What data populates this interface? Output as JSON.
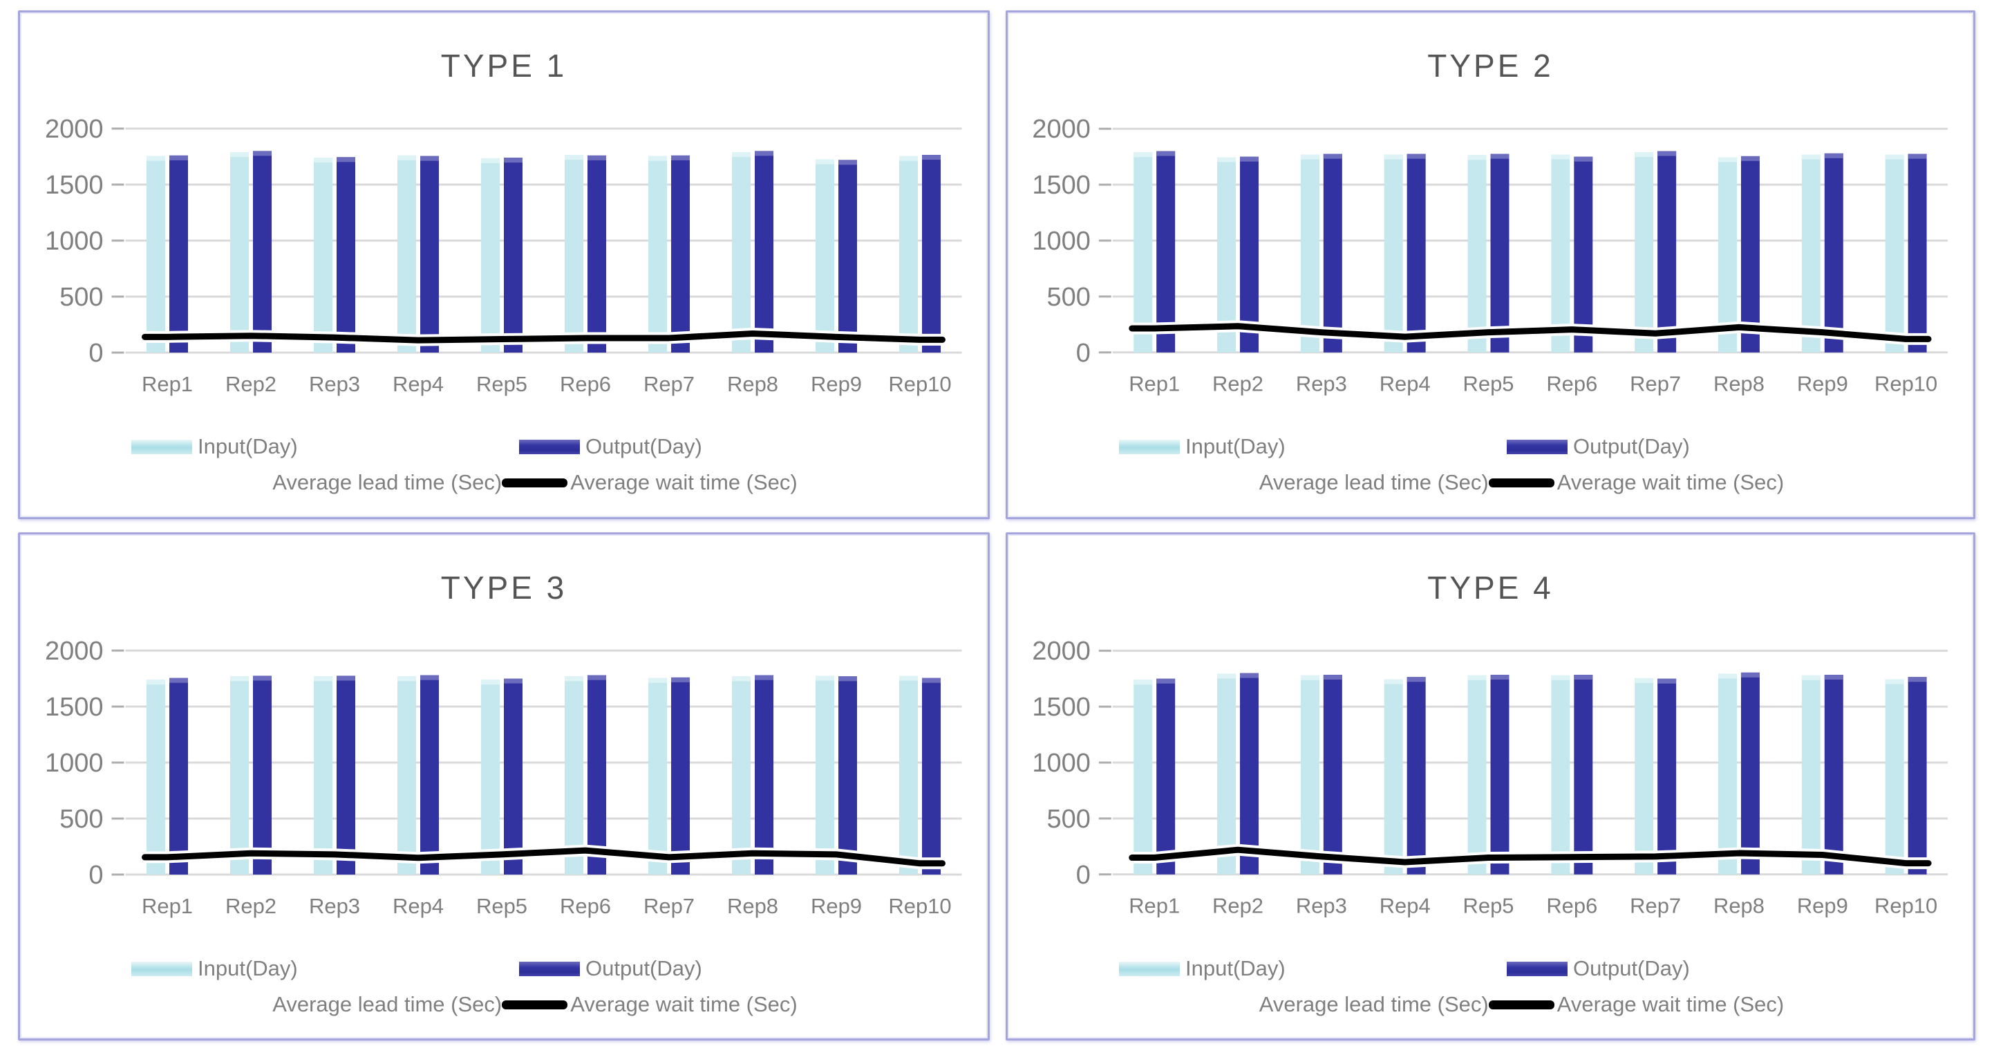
{
  "page": {
    "background": "#ffffff",
    "panel_border_color": "#a4a4df",
    "layout": "2x2 grid of combo charts"
  },
  "colors": {
    "input_bar": "#c4e8ee",
    "input_bar_cap": "#ddf3f6",
    "output_bar": "#3232a0",
    "output_bar_cap": "#6c6cbe",
    "wait_line": "#000000",
    "lead_line": "#ffffff",
    "gridline": "#d9d9d9",
    "tick": "#aeaeae",
    "title_text": "#555555",
    "axis_text": "#7f7f7f",
    "legend_text": "#7f7f7f"
  },
  "legend": {
    "input_label": "Input(Day)",
    "output_label": "Output(Day)",
    "lead_label": "Average lead time (Sec)",
    "wait_label": "Average wait time (Sec)"
  },
  "chart_data": [
    {
      "type": "bar+line",
      "title": "TYPE 1",
      "categories": [
        "Rep1",
        "Rep2",
        "Rep3",
        "Rep4",
        "Rep5",
        "Rep6",
        "Rep7",
        "Rep8",
        "Rep9",
        "Rep10"
      ],
      "series": [
        {
          "name": "Input(Day)",
          "kind": "bar",
          "values": [
            1755,
            1790,
            1740,
            1760,
            1735,
            1765,
            1755,
            1790,
            1725,
            1755
          ]
        },
        {
          "name": "Output(Day)",
          "kind": "bar",
          "values": [
            1760,
            1800,
            1745,
            1755,
            1740,
            1760,
            1760,
            1800,
            1720,
            1765
          ]
        },
        {
          "name": "Average wait time (Sec)",
          "kind": "line",
          "values": [
            140,
            150,
            135,
            110,
            120,
            130,
            130,
            170,
            140,
            115
          ]
        },
        {
          "name": "Average lead time (Sec)",
          "kind": "line",
          "visible": false,
          "values": []
        }
      ],
      "xlabel": "",
      "ylabel": "",
      "ylim": [
        0,
        2000
      ],
      "yticks": [
        0,
        500,
        1000,
        1500,
        2000
      ],
      "grid": true,
      "legend_position": "bottom"
    },
    {
      "type": "bar+line",
      "title": "TYPE 2",
      "categories": [
        "Rep1",
        "Rep2",
        "Rep3",
        "Rep4",
        "Rep5",
        "Rep6",
        "Rep7",
        "Rep8",
        "Rep9",
        "Rep10"
      ],
      "series": [
        {
          "name": "Input(Day)",
          "kind": "bar",
          "values": [
            1790,
            1745,
            1770,
            1770,
            1765,
            1770,
            1790,
            1745,
            1770,
            1770
          ]
        },
        {
          "name": "Output(Day)",
          "kind": "bar",
          "values": [
            1800,
            1750,
            1775,
            1775,
            1775,
            1750,
            1800,
            1755,
            1780,
            1775
          ]
        },
        {
          "name": "Average wait time (Sec)",
          "kind": "line",
          "values": [
            215,
            235,
            180,
            140,
            180,
            205,
            170,
            225,
            180,
            120
          ]
        },
        {
          "name": "Average lead time (Sec)",
          "kind": "line",
          "visible": false,
          "values": []
        }
      ],
      "xlabel": "",
      "ylabel": "",
      "ylim": [
        0,
        2000
      ],
      "yticks": [
        0,
        500,
        1000,
        1500,
        2000
      ],
      "grid": true,
      "legend_position": "bottom"
    },
    {
      "type": "bar+line",
      "title": "TYPE 3",
      "categories": [
        "Rep1",
        "Rep2",
        "Rep3",
        "Rep4",
        "Rep5",
        "Rep6",
        "Rep7",
        "Rep8",
        "Rep9",
        "Rep10"
      ],
      "series": [
        {
          "name": "Input(Day)",
          "kind": "bar",
          "values": [
            1740,
            1770,
            1770,
            1770,
            1740,
            1770,
            1755,
            1770,
            1775,
            1775
          ]
        },
        {
          "name": "Output(Day)",
          "kind": "bar",
          "values": [
            1755,
            1775,
            1775,
            1780,
            1750,
            1780,
            1760,
            1780,
            1770,
            1755
          ]
        },
        {
          "name": "Average wait time (Sec)",
          "kind": "line",
          "values": [
            155,
            190,
            180,
            150,
            180,
            215,
            155,
            190,
            180,
            100
          ]
        },
        {
          "name": "Average lead time (Sec)",
          "kind": "line",
          "visible": false,
          "values": []
        }
      ],
      "xlabel": "",
      "ylabel": "",
      "ylim": [
        0,
        2000
      ],
      "yticks": [
        0,
        500,
        1000,
        1500,
        2000
      ],
      "grid": true,
      "legend_position": "bottom"
    },
    {
      "type": "bar+line",
      "title": "TYPE 4",
      "categories": [
        "Rep1",
        "Rep2",
        "Rep3",
        "Rep4",
        "Rep5",
        "Rep6",
        "Rep7",
        "Rep8",
        "Rep9",
        "Rep10"
      ],
      "series": [
        {
          "name": "Input(Day)",
          "kind": "bar",
          "values": [
            1740,
            1795,
            1780,
            1745,
            1780,
            1780,
            1755,
            1795,
            1780,
            1745
          ]
        },
        {
          "name": "Output(Day)",
          "kind": "bar",
          "values": [
            1750,
            1800,
            1785,
            1765,
            1785,
            1785,
            1750,
            1805,
            1785,
            1765
          ]
        },
        {
          "name": "Average wait time (Sec)",
          "kind": "line",
          "values": [
            150,
            220,
            160,
            110,
            150,
            155,
            160,
            190,
            175,
            100
          ]
        },
        {
          "name": "Average lead time (Sec)",
          "kind": "line",
          "visible": false,
          "values": []
        }
      ],
      "xlabel": "",
      "ylabel": "",
      "ylim": [
        0,
        2000
      ],
      "yticks": [
        0,
        500,
        1000,
        1500,
        2000
      ],
      "grid": true,
      "legend_position": "bottom"
    }
  ]
}
